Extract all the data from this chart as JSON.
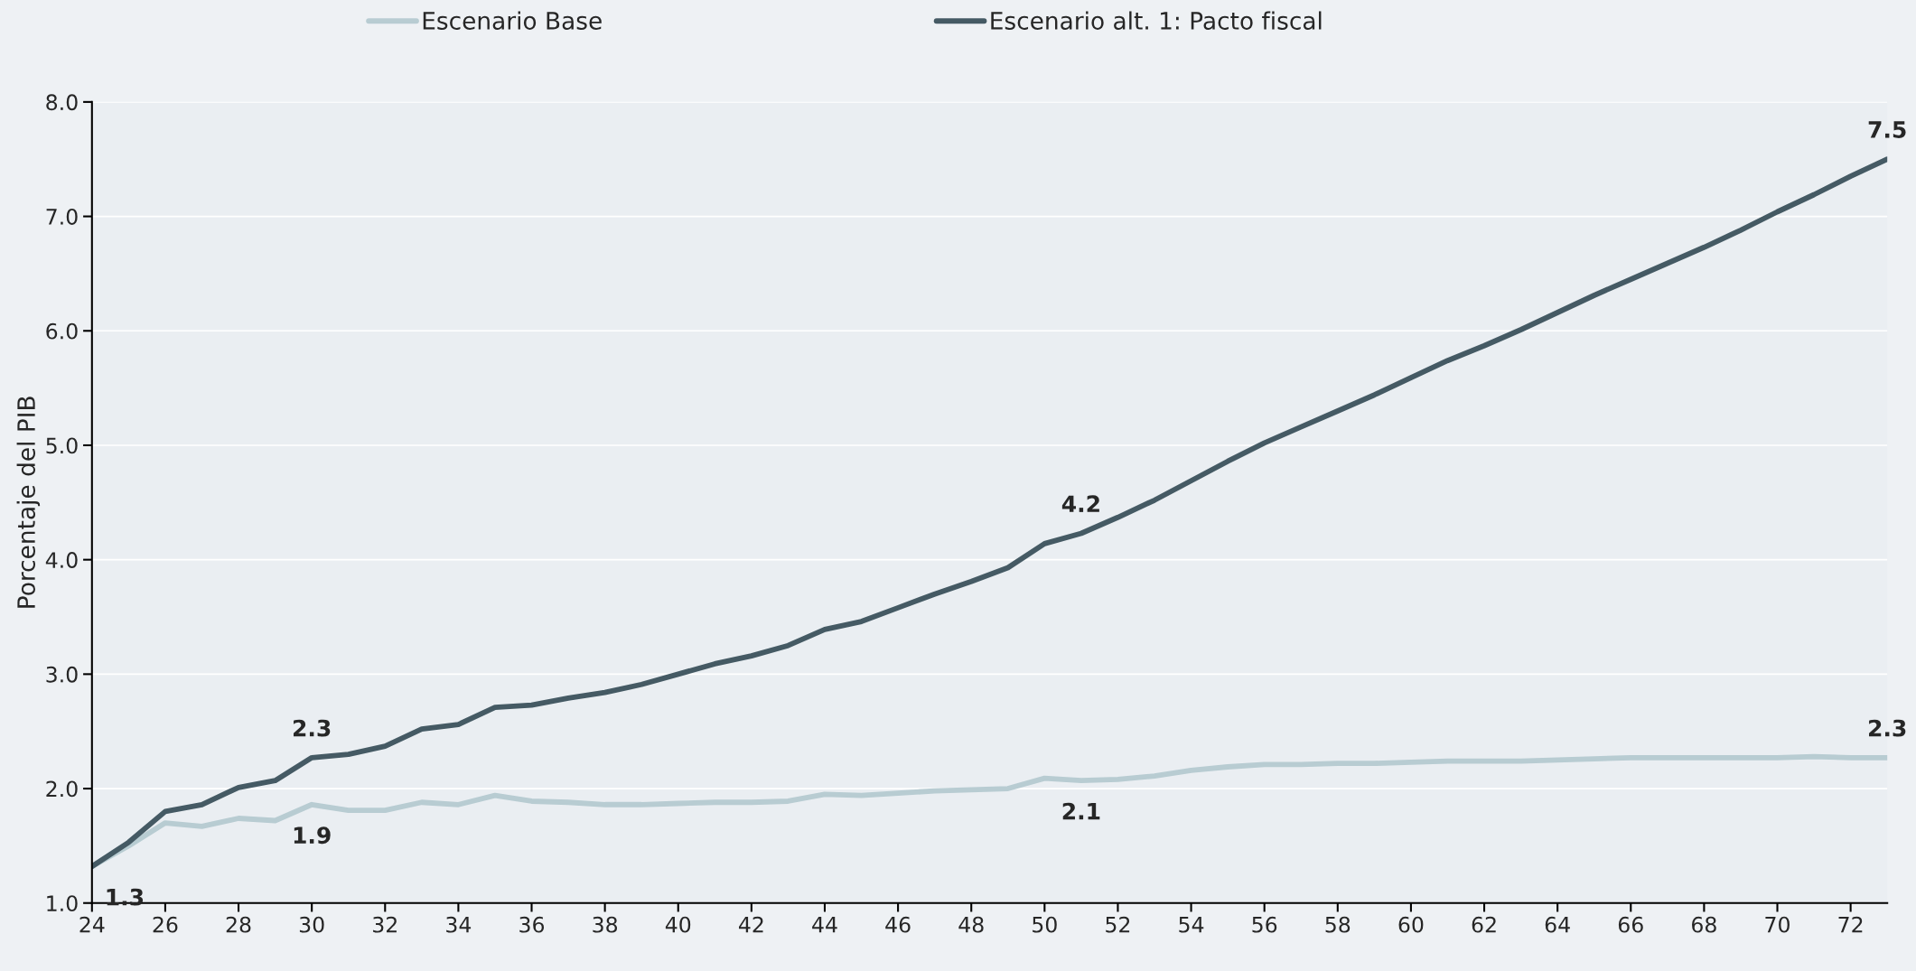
{
  "chart_data": {
    "type": "line",
    "ylabel": "Porcentaje del PIB",
    "x": [
      24,
      25,
      26,
      27,
      28,
      29,
      30,
      31,
      32,
      33,
      34,
      35,
      36,
      37,
      38,
      39,
      40,
      41,
      42,
      43,
      44,
      45,
      46,
      47,
      48,
      49,
      50,
      51,
      52,
      53,
      54,
      55,
      56,
      57,
      58,
      59,
      60,
      61,
      62,
      63,
      64,
      65,
      66,
      67,
      68,
      69,
      70,
      71,
      72,
      73
    ],
    "series": [
      {
        "name": "Escenario Base",
        "color": "#b8ccd2",
        "values": [
          1.32,
          1.5,
          1.7,
          1.67,
          1.74,
          1.72,
          1.86,
          1.81,
          1.81,
          1.88,
          1.86,
          1.94,
          1.89,
          1.88,
          1.86,
          1.86,
          1.87,
          1.88,
          1.88,
          1.89,
          1.95,
          1.94,
          1.96,
          1.98,
          1.99,
          2.0,
          2.09,
          2.07,
          2.08,
          2.11,
          2.16,
          2.19,
          2.21,
          2.21,
          2.22,
          2.22,
          2.23,
          2.24,
          2.24,
          2.24,
          2.25,
          2.26,
          2.27,
          2.27,
          2.27,
          2.27,
          2.27,
          2.28,
          2.27,
          2.27
        ]
      },
      {
        "name": "Escenario alt. 1: Pacto fiscal",
        "color": "#455a64",
        "values": [
          1.32,
          1.53,
          1.8,
          1.86,
          2.01,
          2.07,
          2.27,
          2.3,
          2.37,
          2.52,
          2.56,
          2.71,
          2.73,
          2.79,
          2.84,
          2.91,
          3.0,
          3.09,
          3.16,
          3.25,
          3.39,
          3.46,
          3.58,
          3.7,
          3.81,
          3.93,
          4.14,
          4.23,
          4.37,
          4.52,
          4.69,
          4.86,
          5.02,
          5.16,
          5.3,
          5.44,
          5.59,
          5.74,
          5.87,
          6.01,
          6.16,
          6.31,
          6.45,
          6.59,
          6.73,
          6.88,
          7.04,
          7.19,
          7.35,
          7.5
        ]
      }
    ],
    "annotations": [
      {
        "text": "1.3",
        "x": 24,
        "y": 1.32
      },
      {
        "text": "2.3",
        "x": 30,
        "y": 2.27
      },
      {
        "text": "1.9",
        "x": 30,
        "y": 1.86
      },
      {
        "text": "4.2",
        "x": 51,
        "y": 4.23
      },
      {
        "text": "2.1",
        "x": 51,
        "y": 2.07
      },
      {
        "text": "7.5",
        "x": 73,
        "y": 7.5
      },
      {
        "text": "2.3",
        "x": 73,
        "y": 2.27
      }
    ],
    "xlim": [
      24,
      73
    ],
    "xticks": [
      24,
      26,
      28,
      30,
      32,
      34,
      36,
      38,
      40,
      42,
      44,
      46,
      48,
      50,
      52,
      54,
      56,
      58,
      60,
      62,
      64,
      66,
      68,
      70,
      72
    ],
    "ylim": [
      1,
      8
    ],
    "yticks": [
      {
        "value": 1,
        "label": "1.0"
      },
      {
        "value": 2,
        "label": "2.0"
      },
      {
        "value": 3,
        "label": "3.0"
      },
      {
        "value": 4,
        "label": "4.0"
      },
      {
        "value": 5,
        "label": "5.0"
      },
      {
        "value": 6,
        "label": "6.0"
      },
      {
        "value": 7,
        "label": "7.0"
      },
      {
        "value": 8,
        "label": "8.0"
      }
    ],
    "grid": "y",
    "legend": "top",
    "line_style": "solid",
    "marker": "none"
  }
}
